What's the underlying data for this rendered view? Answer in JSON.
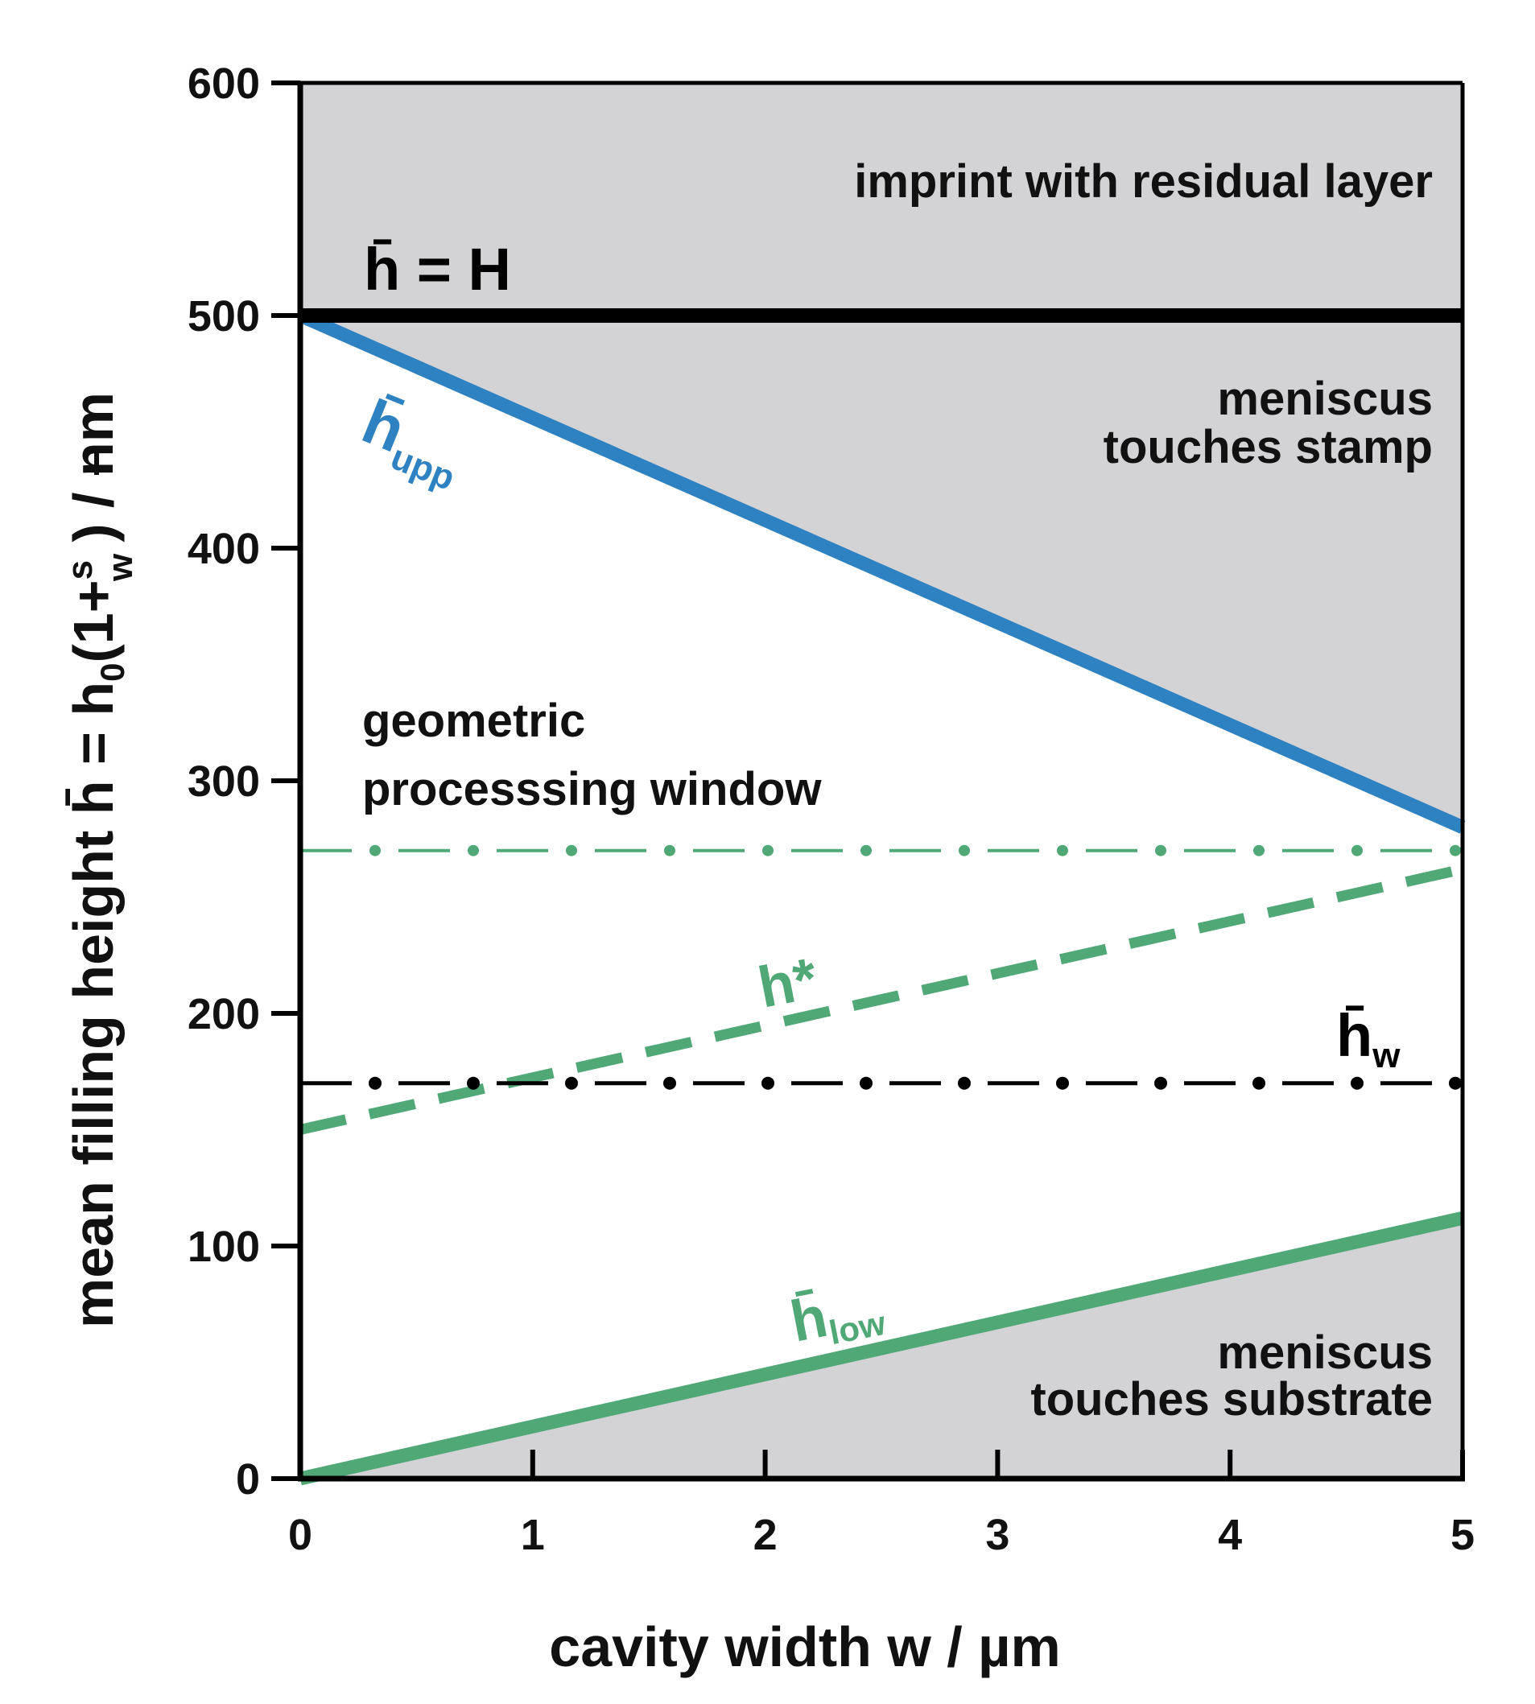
{
  "chart_data": {
    "type": "line",
    "xlabel": "cavity width w / µm",
    "ylabel": "mean filling height h̄ = h₀(1+s/w) / nm",
    "ylabel_parts": {
      "prefix": "mean filling height h̄ = h",
      "subscript": "0",
      "open": "(1+",
      "frac_num": "s",
      "frac_den": "w",
      "close": ") / nm"
    },
    "xlim": [
      0,
      5
    ],
    "ylim": [
      0,
      600
    ],
    "xticks": [
      0,
      1,
      2,
      3,
      4,
      5
    ],
    "yticks": [
      0,
      100,
      200,
      300,
      400,
      500,
      600
    ],
    "grid": false,
    "series": [
      {
        "name": "h̄ = H",
        "style": "solid-thick",
        "color": "#000000",
        "x": [
          0,
          5
        ],
        "y": [
          500,
          500
        ]
      },
      {
        "name": "h̄upp",
        "style": "solid",
        "color": "#2e82c2",
        "x": [
          0,
          5
        ],
        "y": [
          500,
          280
        ]
      },
      {
        "name": "h*",
        "style": "dashed",
        "color": "#4fa876",
        "x": [
          0,
          5
        ],
        "y": [
          150,
          262
        ]
      },
      {
        "name": "h̄low",
        "style": "solid",
        "color": "#4fa876",
        "x": [
          0,
          5
        ],
        "y": [
          0,
          112
        ]
      },
      {
        "name": "h̄w",
        "style": "dash-dot",
        "color": "#000000",
        "x": [
          0,
          5
        ],
        "y": [
          170,
          170
        ]
      },
      {
        "name": "",
        "style": "dash-dot",
        "color": "#4fa876",
        "x": [
          0,
          5
        ],
        "y": [
          270,
          270
        ]
      }
    ],
    "series_labels": {
      "H": {
        "base": "h̄",
        "rest": " = H"
      },
      "upp": {
        "base": "h̄",
        "sub": "upp"
      },
      "star": {
        "text": "h*"
      },
      "w": {
        "base": "h̄",
        "sub": "w"
      },
      "low": {
        "base": "h̄",
        "sub": "low"
      }
    },
    "annotations": {
      "residual": "imprint with residual layer",
      "stamp_1": "meniscus",
      "stamp_2": "touches stamp",
      "window_1": "geometric",
      "window_2": "processsing window",
      "substrate_1": "meniscus",
      "substrate_2": "touches substrate"
    },
    "colors": {
      "region_fill": "#d3d3d6",
      "axis": "#000000",
      "blue": "#2e82c2",
      "green": "#4fa876"
    }
  }
}
